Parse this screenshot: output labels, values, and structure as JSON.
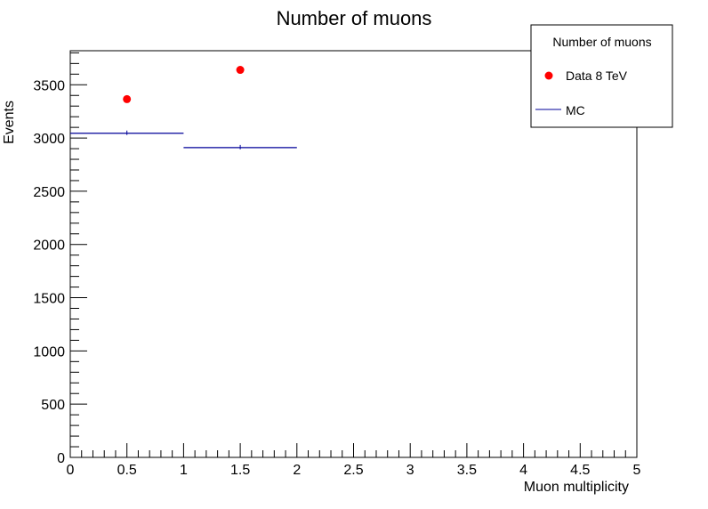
{
  "chart_data": {
    "type": "scatter",
    "title": "Number of muons",
    "xlabel": "Muon multiplicity",
    "ylabel": "Events",
    "xlim": [
      0,
      5
    ],
    "ylim": [
      0,
      3820
    ],
    "x_ticks": [
      "0",
      "0.5",
      "1",
      "1.5",
      "2",
      "2.5",
      "3",
      "3.5",
      "4",
      "4.5",
      "5"
    ],
    "y_ticks": [
      "0",
      "500",
      "1000",
      "1500",
      "2000",
      "2500",
      "3000",
      "3500"
    ],
    "grid": false,
    "legend": {
      "title": "Number of muons",
      "position": "top-right",
      "entries": [
        "Data 8 TeV",
        "MC"
      ]
    },
    "series": [
      {
        "name": "Data 8 TeV",
        "kind": "markers",
        "color": "#ff0000",
        "x": [
          0.5,
          1.5
        ],
        "y": [
          3365,
          3640
        ]
      },
      {
        "name": "MC",
        "kind": "histogram",
        "color": "#000099",
        "bins": [
          [
            0,
            1
          ],
          [
            1,
            2
          ]
        ],
        "y": [
          3045,
          2910
        ]
      }
    ]
  }
}
